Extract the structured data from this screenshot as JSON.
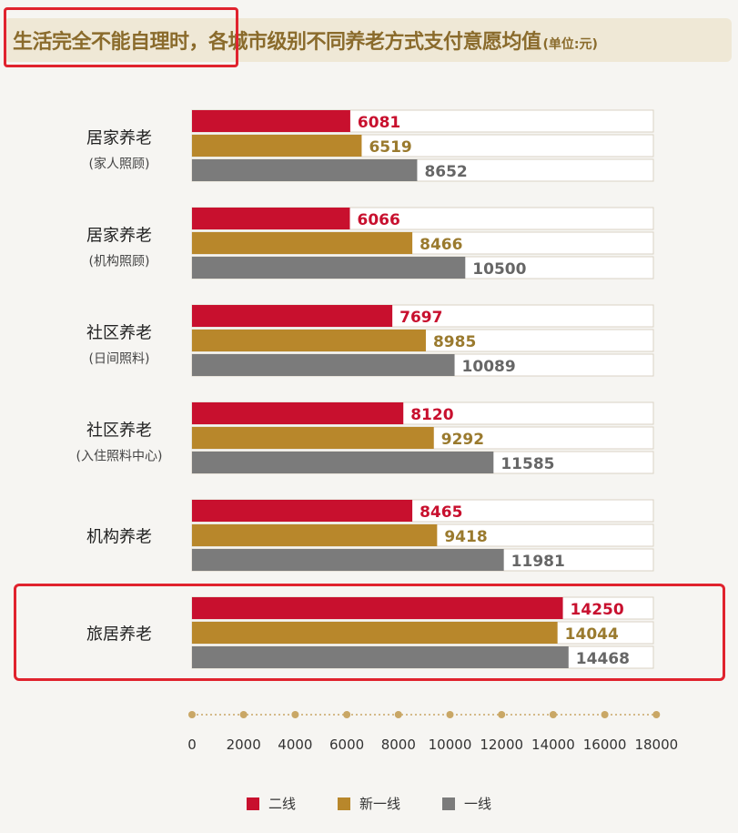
{
  "title": {
    "main": "生活完全不能自理时，各城市级别不同养老方式支付意愿均值",
    "unit": "(单位:元)"
  },
  "colors": {
    "tier2": "#c8102e",
    "new_tier1": "#b8872b",
    "tier1": "#7b7b7b",
    "highlight": "#e0232e"
  },
  "chart_data": {
    "type": "bar",
    "orientation": "horizontal",
    "categories": [
      [
        "居家养老",
        "(家人照顾)"
      ],
      [
        "居家养老",
        "(机构照顾)"
      ],
      [
        "社区养老",
        "(日间照料)"
      ],
      [
        "社区养老",
        "(入住照料中心)"
      ],
      [
        "机构养老"
      ],
      [
        "旅居养老"
      ]
    ],
    "series": [
      {
        "name": "二线",
        "color": "#c8102e",
        "values": [
          6081,
          6066,
          7697,
          8120,
          8465,
          14250
        ]
      },
      {
        "name": "新一线",
        "color": "#b8872b",
        "values": [
          6519,
          8466,
          8985,
          9292,
          9418,
          14044
        ]
      },
      {
        "name": "一线",
        "color": "#7b7b7b",
        "values": [
          8652,
          10500,
          10089,
          11585,
          11981,
          14468
        ]
      }
    ],
    "x_ticks": [
      "0",
      "2000",
      "4000",
      "6000",
      "8000",
      "10000",
      "12000",
      "14000",
      "16000",
      "18000"
    ],
    "xlim": [
      0,
      18000
    ],
    "legend_position": "bottom",
    "grid": false
  }
}
